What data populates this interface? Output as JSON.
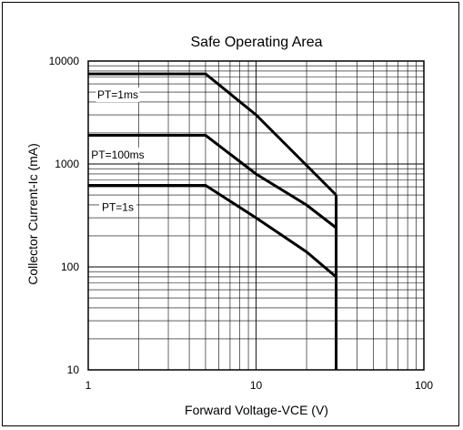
{
  "chart_data": {
    "type": "line",
    "title": "Safe Operating Area",
    "xlabel": "Forward Voltage-VCE (V)",
    "ylabel": "Collector Current-Ic (mA)",
    "xscale": "log",
    "yscale": "log",
    "xlim": [
      1,
      100
    ],
    "ylim": [
      10,
      10000
    ],
    "x_ticks": [
      1,
      10,
      100
    ],
    "x_tick_labels": [
      "1",
      "10",
      "100"
    ],
    "y_ticks": [
      10,
      100,
      1000,
      10000
    ],
    "y_tick_labels": [
      "10",
      "100",
      "1000",
      "10000"
    ],
    "grid": true,
    "series": [
      {
        "name": "PT=1ms",
        "points": [
          [
            1,
            7500
          ],
          [
            5,
            7500
          ],
          [
            10,
            3000
          ],
          [
            30,
            500
          ]
        ]
      },
      {
        "name": "PT=100ms",
        "points": [
          [
            1,
            1900
          ],
          [
            5,
            1900
          ],
          [
            10,
            800
          ],
          [
            20,
            400
          ],
          [
            30,
            240
          ]
        ]
      },
      {
        "name": "PT=1s",
        "points": [
          [
            1,
            620
          ],
          [
            5,
            620
          ],
          [
            10,
            300
          ],
          [
            20,
            140
          ],
          [
            30,
            80
          ]
        ]
      }
    ],
    "boundary": {
      "x": 30,
      "y_range": [
        10,
        500
      ]
    },
    "annotations": [
      {
        "text": "PT=1ms",
        "x": 1.5,
        "y": 4700,
        "series": "PT=1ms"
      },
      {
        "text": "PT=100ms",
        "x": 1.5,
        "y": 1230,
        "series": "PT=100ms"
      },
      {
        "text": "PT=1s",
        "x": 1.5,
        "y": 380,
        "series": "PT=1s"
      }
    ]
  }
}
